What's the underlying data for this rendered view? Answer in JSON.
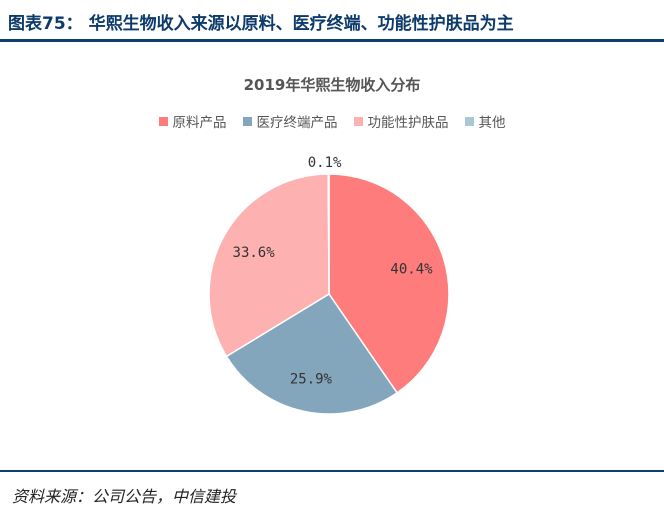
{
  "figure": {
    "label": "图表75：",
    "title": "华熙生物收入来源以原料、医疗终端、功能性护肤品为主"
  },
  "source": "资料来源：公司公告，中信建投",
  "chart_data": {
    "type": "pie",
    "title": "2019年华熙生物收入分布",
    "legend_position": "top",
    "start_angle_deg": 0,
    "direction": "clockwise",
    "slices": [
      {
        "name": "原料产品",
        "value": 40.4,
        "label": "40.4%",
        "color": "#fe7c7c"
      },
      {
        "name": "医疗终端产品",
        "value": 25.9,
        "label": "25.9%",
        "color": "#84a6bd"
      },
      {
        "name": "功能性护肤品",
        "value": 33.6,
        "label": "33.6%",
        "color": "#fdb1b1"
      },
      {
        "name": "其他",
        "value": 0.1,
        "label": "0.1%",
        "color": "#aac7d6"
      }
    ]
  }
}
